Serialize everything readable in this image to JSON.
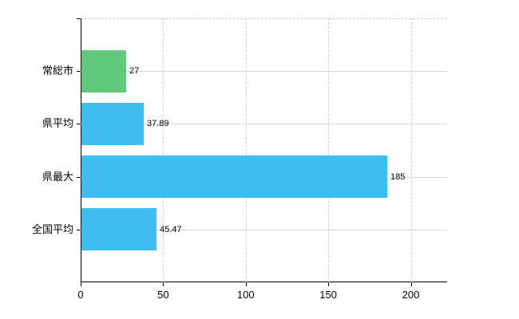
{
  "chart_data": {
    "type": "bar",
    "orientation": "horizontal",
    "title": "",
    "categories": [
      "常総市",
      "県平均",
      "県最大",
      "全国平均"
    ],
    "values": [
      27,
      37.89,
      185,
      45.47
    ],
    "value_labels": [
      "27",
      "37.89",
      "185",
      "45.47"
    ],
    "bar_colors": [
      "#5fc87b",
      "#3dbdf0",
      "#3dbdf0",
      "#3dbdf0"
    ],
    "x_ticks": [
      0,
      50,
      100,
      150,
      200
    ],
    "x_tick_labels": [
      "0",
      "50",
      "100",
      "150",
      "200"
    ],
    "xlim": [
      0,
      222
    ],
    "grid": {
      "horizontal": "solid",
      "vertical": "dashed",
      "top_border": "dashed"
    },
    "legend": "none",
    "colors": {
      "accent_green": "#5fc87b",
      "accent_blue": "#3dbdf0",
      "axis": "#000000",
      "gridline_horizontal": "#d2d8d2",
      "gridline_vertical": "#cfcfcf",
      "text": "#000000",
      "background": "#ffffff"
    }
  }
}
